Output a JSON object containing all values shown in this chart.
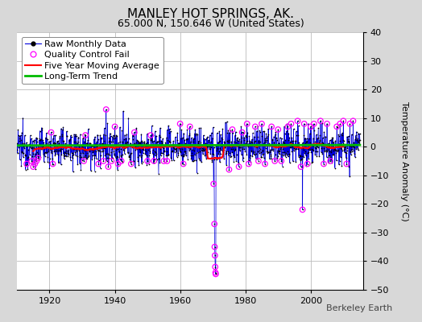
{
  "title": "MANLEY HOT SPRINGS, AK.",
  "subtitle": "65.000 N, 150.646 W (United States)",
  "ylabel": "Temperature Anomaly (°C)",
  "watermark": "Berkeley Earth",
  "ylim": [
    -50,
    40
  ],
  "yticks": [
    -50,
    -40,
    -30,
    -20,
    -10,
    0,
    10,
    20,
    30,
    40
  ],
  "xlim": [
    1910,
    2016
  ],
  "xticks": [
    1920,
    1940,
    1960,
    1980,
    2000
  ],
  "background_color": "#d8d8d8",
  "plot_background_color": "#ffffff",
  "grid_color": "#bbbbbb",
  "raw_line_color": "#0000dd",
  "raw_dot_color": "#000000",
  "qc_fail_color": "#ff00ff",
  "moving_avg_color": "#ff0000",
  "trend_color": "#00bb00",
  "title_fontsize": 11,
  "subtitle_fontsize": 9,
  "legend_fontsize": 8,
  "tick_fontsize": 8,
  "ylabel_fontsize": 8
}
